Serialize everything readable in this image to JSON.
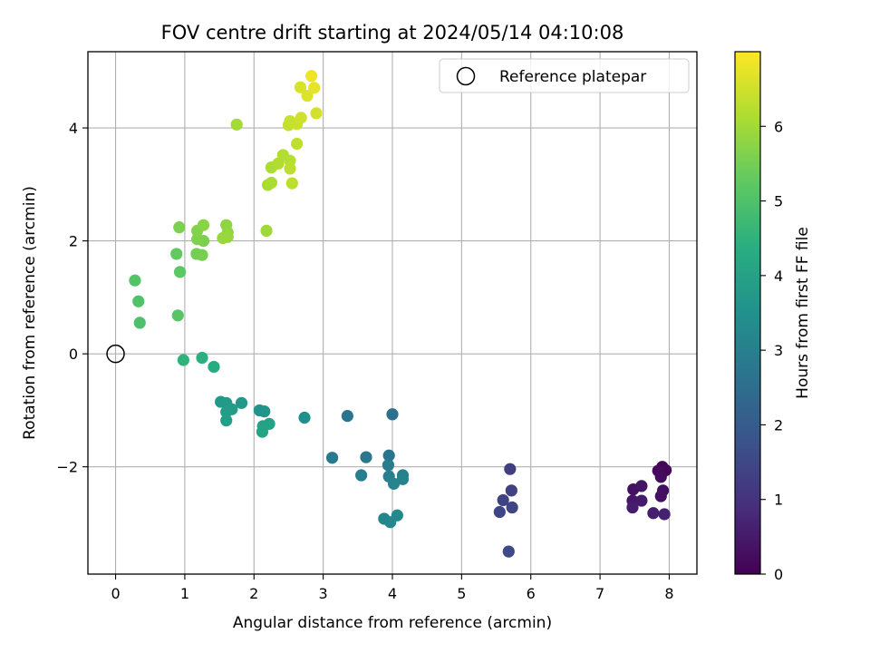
{
  "chart_data": {
    "type": "scatter",
    "title": "FOV centre drift starting at 2024/05/14 04:10:08",
    "xlabel": "Angular distance from reference (arcmin)",
    "ylabel": "Rotation from reference (arcmin)",
    "xlim": [
      -0.4,
      8.4
    ],
    "ylim": [
      -3.9,
      5.35
    ],
    "xticks": [
      0,
      1,
      2,
      3,
      4,
      5,
      6,
      7,
      8
    ],
    "yticks": [
      -2,
      0,
      2,
      4
    ],
    "grid": true,
    "legend": {
      "position": "top-right",
      "entries": [
        "Reference platepar"
      ]
    },
    "reference": {
      "x": 0,
      "y": 0
    },
    "colorbar": {
      "label": "Hours from first FF file",
      "range": [
        0,
        7
      ],
      "ticks": [
        0,
        1,
        2,
        3,
        4,
        5,
        6
      ],
      "colormap": "viridis"
    },
    "points": [
      {
        "x": 7.9,
        "y": -2.0,
        "t": 0.05
      },
      {
        "x": 7.95,
        "y": -2.06,
        "t": 0.1
      },
      {
        "x": 7.84,
        "y": -2.07,
        "t": 0.15
      },
      {
        "x": 7.88,
        "y": -2.18,
        "t": 0.2
      },
      {
        "x": 7.91,
        "y": -2.42,
        "t": 0.25
      },
      {
        "x": 7.88,
        "y": -2.52,
        "t": 0.3
      },
      {
        "x": 7.48,
        "y": -2.4,
        "t": 0.35
      },
      {
        "x": 7.6,
        "y": -2.34,
        "t": 0.4
      },
      {
        "x": 7.47,
        "y": -2.6,
        "t": 0.45
      },
      {
        "x": 7.6,
        "y": -2.6,
        "t": 0.5
      },
      {
        "x": 7.47,
        "y": -2.72,
        "t": 0.55
      },
      {
        "x": 7.77,
        "y": -2.82,
        "t": 0.6
      },
      {
        "x": 7.93,
        "y": -2.84,
        "t": 0.65
      },
      {
        "x": 5.7,
        "y": -2.04,
        "t": 1.3
      },
      {
        "x": 5.72,
        "y": -2.42,
        "t": 1.35
      },
      {
        "x": 5.6,
        "y": -2.59,
        "t": 1.4
      },
      {
        "x": 5.73,
        "y": -2.72,
        "t": 1.45
      },
      {
        "x": 5.55,
        "y": -2.8,
        "t": 1.5
      },
      {
        "x": 5.68,
        "y": -3.5,
        "t": 1.55
      },
      {
        "x": 4.0,
        "y": -1.07,
        "t": 2.6
      },
      {
        "x": 3.35,
        "y": -1.1,
        "t": 2.7
      },
      {
        "x": 3.95,
        "y": -1.8,
        "t": 2.75
      },
      {
        "x": 3.62,
        "y": -1.83,
        "t": 2.8
      },
      {
        "x": 3.13,
        "y": -1.84,
        "t": 2.85
      },
      {
        "x": 3.94,
        "y": -1.97,
        "t": 2.9
      },
      {
        "x": 3.55,
        "y": -2.15,
        "t": 2.95
      },
      {
        "x": 3.95,
        "y": -2.17,
        "t": 3.0
      },
      {
        "x": 4.15,
        "y": -2.15,
        "t": 3.05
      },
      {
        "x": 4.15,
        "y": -2.22,
        "t": 3.1
      },
      {
        "x": 4.02,
        "y": -2.3,
        "t": 3.15
      },
      {
        "x": 3.88,
        "y": -2.92,
        "t": 3.2
      },
      {
        "x": 3.97,
        "y": -2.98,
        "t": 3.25
      },
      {
        "x": 4.07,
        "y": -2.86,
        "t": 3.3
      },
      {
        "x": 2.73,
        "y": -1.13,
        "t": 3.5
      },
      {
        "x": 2.08,
        "y": -1.0,
        "t": 3.6
      },
      {
        "x": 2.15,
        "y": -1.02,
        "t": 3.65
      },
      {
        "x": 1.82,
        "y": -0.87,
        "t": 3.7
      },
      {
        "x": 1.52,
        "y": -0.85,
        "t": 3.75
      },
      {
        "x": 1.6,
        "y": -0.87,
        "t": 3.8
      },
      {
        "x": 1.68,
        "y": -0.98,
        "t": 3.85
      },
      {
        "x": 1.6,
        "y": -1.03,
        "t": 3.9
      },
      {
        "x": 1.6,
        "y": -1.18,
        "t": 3.95
      },
      {
        "x": 2.22,
        "y": -1.24,
        "t": 4.0
      },
      {
        "x": 2.13,
        "y": -1.28,
        "t": 4.05
      },
      {
        "x": 2.12,
        "y": -1.38,
        "t": 4.1
      },
      {
        "x": 1.42,
        "y": -0.23,
        "t": 4.35
      },
      {
        "x": 1.25,
        "y": -0.07,
        "t": 4.45
      },
      {
        "x": 0.98,
        "y": -0.11,
        "t": 4.55
      },
      {
        "x": 0.35,
        "y": 0.55,
        "t": 5.0
      },
      {
        "x": 0.33,
        "y": 0.93,
        "t": 5.05
      },
      {
        "x": 0.28,
        "y": 1.3,
        "t": 5.1
      },
      {
        "x": 0.9,
        "y": 0.68,
        "t": 5.15
      },
      {
        "x": 0.93,
        "y": 1.45,
        "t": 5.25
      },
      {
        "x": 0.88,
        "y": 1.77,
        "t": 5.3
      },
      {
        "x": 1.17,
        "y": 1.77,
        "t": 5.5
      },
      {
        "x": 1.25,
        "y": 1.75,
        "t": 5.55
      },
      {
        "x": 1.27,
        "y": 2.0,
        "t": 5.6
      },
      {
        "x": 1.18,
        "y": 2.03,
        "t": 5.65
      },
      {
        "x": 1.18,
        "y": 2.18,
        "t": 5.7
      },
      {
        "x": 0.92,
        "y": 2.24,
        "t": 5.6
      },
      {
        "x": 1.27,
        "y": 2.28,
        "t": 5.75
      },
      {
        "x": 1.6,
        "y": 2.28,
        "t": 5.8
      },
      {
        "x": 1.62,
        "y": 2.15,
        "t": 5.85
      },
      {
        "x": 1.62,
        "y": 2.07,
        "t": 5.9
      },
      {
        "x": 1.55,
        "y": 2.05,
        "t": 5.92
      },
      {
        "x": 2.18,
        "y": 2.18,
        "t": 6.0
      },
      {
        "x": 1.75,
        "y": 4.06,
        "t": 6.05
      },
      {
        "x": 2.2,
        "y": 2.99,
        "t": 6.1
      },
      {
        "x": 2.25,
        "y": 3.03,
        "t": 6.12
      },
      {
        "x": 2.25,
        "y": 3.3,
        "t": 6.15
      },
      {
        "x": 2.35,
        "y": 3.37,
        "t": 6.2
      },
      {
        "x": 2.42,
        "y": 3.52,
        "t": 6.22
      },
      {
        "x": 2.52,
        "y": 3.42,
        "t": 6.25
      },
      {
        "x": 2.52,
        "y": 3.28,
        "t": 6.3
      },
      {
        "x": 2.55,
        "y": 3.02,
        "t": 6.32
      },
      {
        "x": 2.62,
        "y": 3.72,
        "t": 6.35
      },
      {
        "x": 2.5,
        "y": 4.05,
        "t": 6.4
      },
      {
        "x": 2.52,
        "y": 4.12,
        "t": 6.42
      },
      {
        "x": 2.62,
        "y": 4.07,
        "t": 6.45
      },
      {
        "x": 2.68,
        "y": 4.18,
        "t": 6.5
      },
      {
        "x": 2.9,
        "y": 4.26,
        "t": 6.55
      },
      {
        "x": 2.67,
        "y": 4.72,
        "t": 6.6
      },
      {
        "x": 2.77,
        "y": 4.57,
        "t": 6.65
      },
      {
        "x": 2.87,
        "y": 4.71,
        "t": 6.75
      },
      {
        "x": 2.83,
        "y": 4.92,
        "t": 6.85
      }
    ]
  }
}
